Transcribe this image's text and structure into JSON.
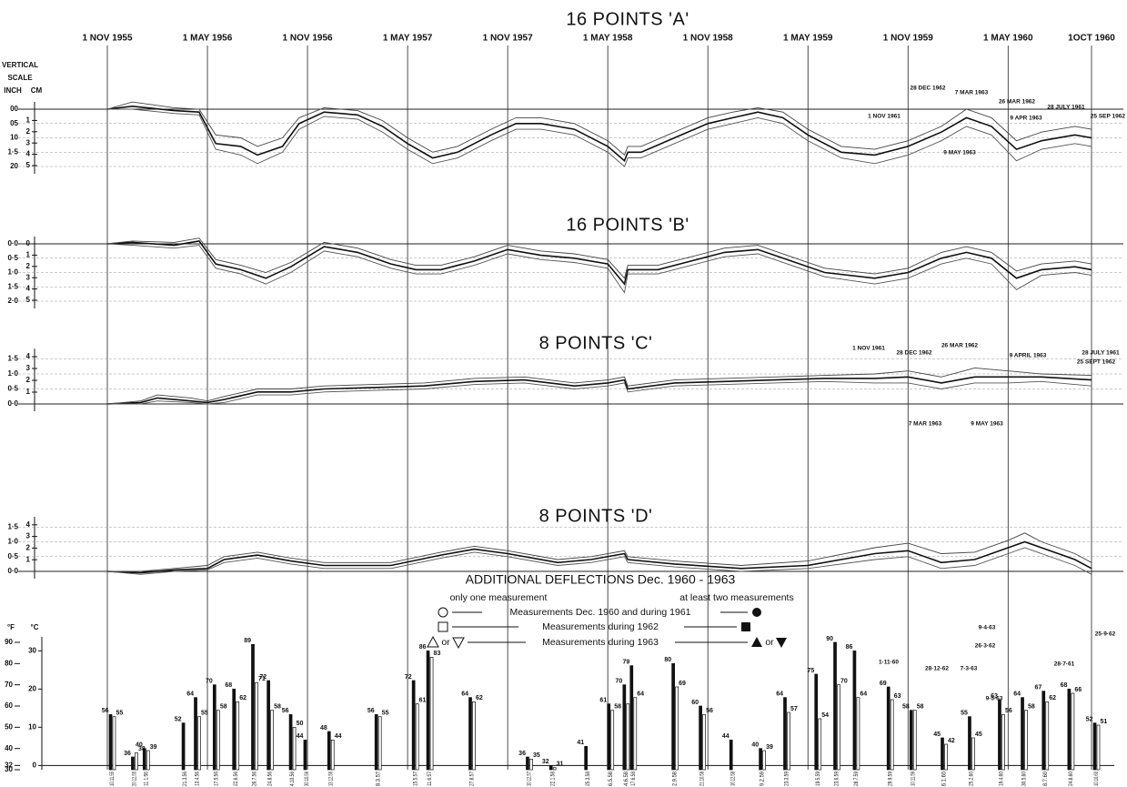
{
  "scale_labels": {
    "vertical": "VERTICAL",
    "scale": "SCALE",
    "inch": "INCH",
    "cm": "CM",
    "fahrenheit": "°F",
    "celsius": "°C"
  },
  "legend": {
    "title": "ADDITIONAL DEFLECTIONS Dec. 1960 - 1963",
    "left": "only one measurement",
    "right": "at least two measurements",
    "rows": [
      "Measurements Dec. 1960 and during 1961",
      "Measurements during 1962",
      "Measurements during 1963"
    ],
    "or": "or"
  },
  "chart_data": [
    {
      "type": "line",
      "title": "16 POINTS 'A'",
      "xlim": [
        0,
        59
      ],
      "xticks": [
        {
          "value": 0,
          "label": "1 NOV 1955"
        },
        {
          "value": 6,
          "label": "1 MAY 1956"
        },
        {
          "value": 12,
          "label": "1 NOV 1956"
        },
        {
          "value": 18,
          "label": "1 MAY 1957"
        },
        {
          "value": 24,
          "label": "1 NOV 1957"
        },
        {
          "value": 30,
          "label": "1 MAY 1958"
        },
        {
          "value": 36,
          "label": "1 NOV 1958"
        },
        {
          "value": 42,
          "label": "1 MAY 1959"
        },
        {
          "value": 48,
          "label": "1 NOV 1959"
        },
        {
          "value": 54,
          "label": "1 MAY 1960"
        },
        {
          "value": 59,
          "label": "1OCT 1960"
        }
      ],
      "ylim": [
        2.0,
        0
      ],
      "yticks": [
        {
          "value": 0,
          "label": "00"
        },
        {
          "value": 0.5,
          "label": "05"
        },
        {
          "value": 1.0,
          "label": "10"
        },
        {
          "value": 1.5,
          "label": "1·5"
        },
        {
          "value": 2.0,
          "label": "20"
        }
      ],
      "y2lim": [
        5.08,
        0
      ],
      "y2ticks": [
        1,
        2,
        3,
        4,
        5
      ],
      "grid": true,
      "x": [
        0,
        1.5,
        4,
        5.5,
        6.5,
        8,
        9,
        10.5,
        11.5,
        13,
        15,
        16.5,
        18,
        19.5,
        21,
        23,
        24.5,
        26,
        28,
        30,
        31,
        31.2,
        32,
        34,
        36,
        37.5,
        39,
        40.5,
        42,
        44,
        46,
        48,
        50,
        51.5,
        53,
        54.5,
        56,
        58,
        59
      ],
      "series": [
        {
          "color": "#111111",
          "values": [
            0,
            -0.1,
            0.05,
            0.1,
            1.2,
            1.3,
            1.6,
            1.3,
            0.5,
            0.1,
            0.2,
            0.6,
            1.2,
            1.7,
            1.5,
            0.9,
            0.5,
            0.5,
            0.7,
            1.3,
            1.8,
            1.5,
            1.5,
            1.0,
            0.5,
            0.3,
            0.1,
            0.3,
            0.9,
            1.5,
            1.6,
            1.3,
            0.8,
            0.3,
            0.6,
            1.4,
            1.1,
            0.9,
            1.0
          ]
        },
        {
          "color": "#444444",
          "values": [
            0,
            -0.25,
            -0.05,
            0,
            0.9,
            1.0,
            1.3,
            1.0,
            0.3,
            -0.05,
            0.05,
            0.4,
            1.0,
            1.5,
            1.3,
            0.7,
            0.3,
            0.3,
            0.5,
            1.1,
            1.6,
            1.3,
            1.3,
            0.8,
            0.3,
            0.1,
            -0.05,
            0.1,
            0.7,
            1.3,
            1.4,
            1.1,
            0.6,
            0.0,
            0.3,
            1.1,
            0.8,
            0.6,
            0.7
          ]
        },
        {
          "color": "#555555",
          "values": [
            0,
            0,
            0.15,
            0.2,
            1.4,
            1.6,
            1.9,
            1.5,
            0.7,
            0.25,
            0.35,
            0.8,
            1.4,
            1.9,
            1.7,
            1.1,
            0.7,
            0.7,
            0.9,
            1.5,
            2.0,
            1.7,
            1.7,
            1.2,
            0.7,
            0.5,
            0.3,
            0.5,
            1.1,
            1.7,
            1.9,
            1.6,
            1.1,
            0.6,
            0.9,
            1.8,
            1.4,
            1.2,
            1.3
          ]
        }
      ],
      "annotations": [
        "28 DEC 1962",
        "7 MAR 1963",
        "26 MAR 1962",
        "1 NOV 1961",
        "9 APR 1963",
        "28 JULY 1961",
        "25 SEP 1962",
        "9 MAY 1963"
      ]
    },
    {
      "type": "line",
      "title": "16 POINTS 'B'",
      "xlim": [
        0,
        59
      ],
      "ylim": [
        2.0,
        0
      ],
      "yticks": [
        {
          "value": 0,
          "label": "0·0"
        },
        {
          "value": 0.5,
          "label": "0·5"
        },
        {
          "value": 1.0,
          "label": "1·0"
        },
        {
          "value": 1.5,
          "label": "1·5"
        },
        {
          "value": 2.0,
          "label": "2·0"
        }
      ],
      "y2lim": [
        5.08,
        0
      ],
      "y2ticks": [
        0,
        1,
        2,
        3,
        4,
        5
      ],
      "grid": true,
      "x": [
        0,
        1.5,
        4,
        5.5,
        6.5,
        8,
        9.5,
        11,
        13,
        15,
        17,
        18.5,
        20,
        22,
        24,
        26,
        28,
        30,
        31,
        31.2,
        33,
        35,
        37,
        39,
        41,
        43,
        46,
        48,
        50,
        51.5,
        53,
        54.5,
        56,
        58,
        59
      ],
      "series": [
        {
          "color": "#111111",
          "values": [
            0,
            -0.05,
            0.05,
            -0.1,
            0.7,
            0.9,
            1.2,
            0.8,
            0.1,
            0.3,
            0.7,
            0.9,
            0.9,
            0.6,
            0.2,
            0.4,
            0.5,
            0.7,
            1.4,
            0.9,
            0.9,
            0.6,
            0.3,
            0.2,
            0.6,
            1.0,
            1.2,
            1.0,
            0.5,
            0.3,
            0.5,
            1.2,
            0.9,
            0.8,
            0.9
          ]
        },
        {
          "color": "#444444",
          "values": [
            0,
            -0.1,
            -0.05,
            -0.2,
            0.55,
            0.75,
            1.0,
            0.65,
            -0.05,
            0.15,
            0.55,
            0.75,
            0.75,
            0.45,
            0.05,
            0.25,
            0.35,
            0.55,
            1.2,
            0.75,
            0.75,
            0.45,
            0.15,
            0.05,
            0.45,
            0.85,
            1.05,
            0.85,
            0.3,
            0.1,
            0.3,
            0.95,
            0.7,
            0.6,
            0.7
          ]
        },
        {
          "color": "#555555",
          "values": [
            0,
            0.05,
            0.15,
            0.05,
            0.85,
            1.05,
            1.4,
            1.0,
            0.25,
            0.45,
            0.85,
            1.05,
            1.05,
            0.75,
            0.35,
            0.55,
            0.65,
            0.85,
            1.7,
            1.05,
            1.05,
            0.75,
            0.45,
            0.35,
            0.75,
            1.15,
            1.4,
            1.2,
            0.7,
            0.5,
            0.7,
            1.6,
            1.1,
            1.0,
            1.1
          ]
        }
      ]
    },
    {
      "type": "line",
      "title": "8 POINTS 'C'",
      "xlim": [
        0,
        59
      ],
      "ylim": [
        0,
        1.6
      ],
      "yticks": [
        {
          "value": 0,
          "label": "0·0"
        },
        {
          "value": 0.5,
          "label": "0·5"
        },
        {
          "value": 1.0,
          "label": "1·0"
        },
        {
          "value": 1.5,
          "label": "1·5"
        }
      ],
      "y2lim": [
        0,
        4.064
      ],
      "y2ticks": [
        1,
        2,
        3,
        4
      ],
      "grid": true,
      "x": [
        0,
        2,
        3,
        5,
        6,
        7,
        9,
        11,
        13,
        16,
        19,
        22,
        25,
        28,
        30,
        31,
        31.2,
        34,
        37,
        40,
        43,
        46,
        48,
        50,
        52,
        54,
        56,
        59
      ],
      "series": [
        {
          "color": "#111111",
          "values": [
            0,
            0.05,
            0.2,
            0.1,
            0.05,
            0.15,
            0.4,
            0.4,
            0.5,
            0.55,
            0.6,
            0.75,
            0.8,
            0.6,
            0.7,
            0.8,
            0.5,
            0.7,
            0.75,
            0.8,
            0.85,
            0.85,
            0.9,
            0.7,
            0.9,
            0.9,
            0.9,
            0.8
          ]
        },
        {
          "color": "#444444",
          "values": [
            0,
            0.1,
            0.3,
            0.2,
            0.1,
            0.25,
            0.5,
            0.5,
            0.6,
            0.65,
            0.7,
            0.85,
            0.9,
            0.7,
            0.8,
            0.9,
            0.6,
            0.8,
            0.85,
            0.9,
            0.95,
            1.0,
            1.1,
            0.9,
            1.2,
            1.1,
            1.0,
            0.95
          ]
        },
        {
          "color": "#555555",
          "values": [
            0,
            0,
            0.1,
            0.05,
            0,
            0.05,
            0.3,
            0.3,
            0.4,
            0.45,
            0.5,
            0.65,
            0.7,
            0.5,
            0.6,
            0.7,
            0.4,
            0.6,
            0.65,
            0.7,
            0.75,
            0.7,
            0.7,
            0.5,
            0.7,
            0.7,
            0.75,
            0.6
          ]
        }
      ],
      "annotations": [
        "1 NOV 1961",
        "28 DEC 1962",
        "26 MAR 1962",
        "9 APRIL 1963",
        "28 JULY 1961",
        "25 SEPT 1962",
        "7 MAR 1963",
        "9 MAY 1963"
      ]
    },
    {
      "type": "line",
      "title": "8 POINTS 'D'",
      "xlim": [
        0,
        59
      ],
      "ylim": [
        0,
        1.6
      ],
      "yticks": [
        {
          "value": 0,
          "label": "0·0"
        },
        {
          "value": 0.5,
          "label": "0·5"
        },
        {
          "value": 1.0,
          "label": "1·0"
        },
        {
          "value": 1.5,
          "label": "1·5"
        }
      ],
      "y2lim": [
        0,
        4.064
      ],
      "y2ticks": [
        1,
        2,
        3,
        4
      ],
      "grid": true,
      "x": [
        0,
        2,
        4,
        6,
        7,
        9,
        11,
        13,
        17,
        20,
        22,
        24,
        27,
        29,
        31,
        31.2,
        34,
        38,
        42,
        46,
        48,
        50,
        52,
        54,
        55,
        56,
        58,
        59
      ],
      "series": [
        {
          "color": "#111111",
          "values": [
            0,
            -0.05,
            0.05,
            0.1,
            0.4,
            0.55,
            0.35,
            0.2,
            0.2,
            0.55,
            0.75,
            0.6,
            0.3,
            0.4,
            0.6,
            0.4,
            0.25,
            0.1,
            0.2,
            0.6,
            0.7,
            0.3,
            0.4,
            0.8,
            1.0,
            0.8,
            0.4,
            0.1
          ]
        },
        {
          "color": "#444444",
          "values": [
            0,
            0,
            0.1,
            0.2,
            0.5,
            0.65,
            0.45,
            0.3,
            0.3,
            0.65,
            0.85,
            0.7,
            0.4,
            0.5,
            0.7,
            0.5,
            0.35,
            0.2,
            0.35,
            0.8,
            0.95,
            0.6,
            0.65,
            1.05,
            1.3,
            1.0,
            0.6,
            0.3
          ]
        },
        {
          "color": "#555555",
          "values": [
            0,
            -0.1,
            0,
            0.05,
            0.3,
            0.45,
            0.25,
            0.1,
            0.1,
            0.45,
            0.65,
            0.5,
            0.2,
            0.3,
            0.5,
            0.3,
            0.15,
            0.0,
            0.1,
            0.4,
            0.5,
            0.1,
            0.2,
            0.6,
            0.8,
            0.6,
            0.2,
            -0.1
          ]
        }
      ]
    },
    {
      "type": "bar",
      "ylim": [
        30,
        90
      ],
      "yticks": [
        30,
        32,
        40,
        50,
        60,
        70,
        80,
        90
      ],
      "y2lim": [
        -1.111,
        32.222
      ],
      "y2ticks": [
        0,
        10,
        20,
        30
      ],
      "x": [
        "10.11.55",
        "20.12.55",
        "11.1.56",
        "21.3.56",
        "13.4.56",
        "17.5.56",
        "22.6.56",
        "26.7.56",
        "24.8.56",
        "4.10.56",
        "30.10.56",
        "13.12.56",
        "8.3.57",
        "15.5.57",
        "11.6.57",
        "27.8.57",
        "10.12.57",
        "22.1.58",
        "25.3.58",
        "6.5.58",
        "4.6.58",
        "17.6.58",
        "2.9.58",
        "21.10.58",
        "16.12.58",
        "9.2.59",
        "23.3.59",
        "19.5.59",
        "23.6.59",
        "28.7.59",
        "29.9.59",
        "10.11.59",
        "6.1.60",
        "25.2.60",
        "19.4.60",
        "30.5.60",
        "8.7.60",
        "24.8.60",
        "10.10.60"
      ],
      "series": [
        {
          "color": "#111111",
          "values": [
            56,
            36,
            40,
            52,
            64,
            70,
            68,
            89,
            72,
            56,
            44,
            48,
            56,
            72,
            86,
            64,
            36,
            32,
            41,
            61,
            70,
            79,
            80,
            60,
            44,
            40,
            64,
            75,
            90,
            86,
            69,
            58,
            45,
            55,
            63,
            64,
            67,
            68,
            52
          ]
        },
        {
          "color": "#ffffff",
          "values": [
            55,
            38,
            39,
            null,
            55,
            58,
            62,
            71,
            58,
            50,
            null,
            44,
            55,
            61,
            83,
            62,
            35,
            31,
            null,
            58,
            61,
            64,
            69,
            56,
            null,
            39,
            57,
            54,
            70,
            64,
            63,
            58,
            42,
            45,
            56,
            58,
            62,
            66,
            51
          ]
        }
      ],
      "annotations": [
        "9·4·63",
        "26·3·62",
        "7·3·63",
        "28·12·62",
        "1·11·60",
        "9·5·63",
        "28·7·61",
        "25·9·62"
      ]
    }
  ]
}
